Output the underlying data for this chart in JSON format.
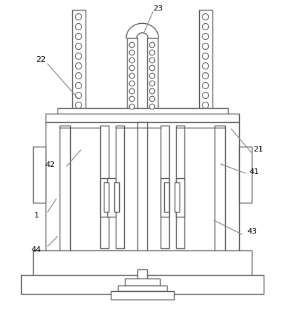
{
  "bg_color": "#ffffff",
  "line_color": "#5a5a5a",
  "line_width": 1.0,
  "fig_width": 4.06,
  "fig_height": 4.6
}
